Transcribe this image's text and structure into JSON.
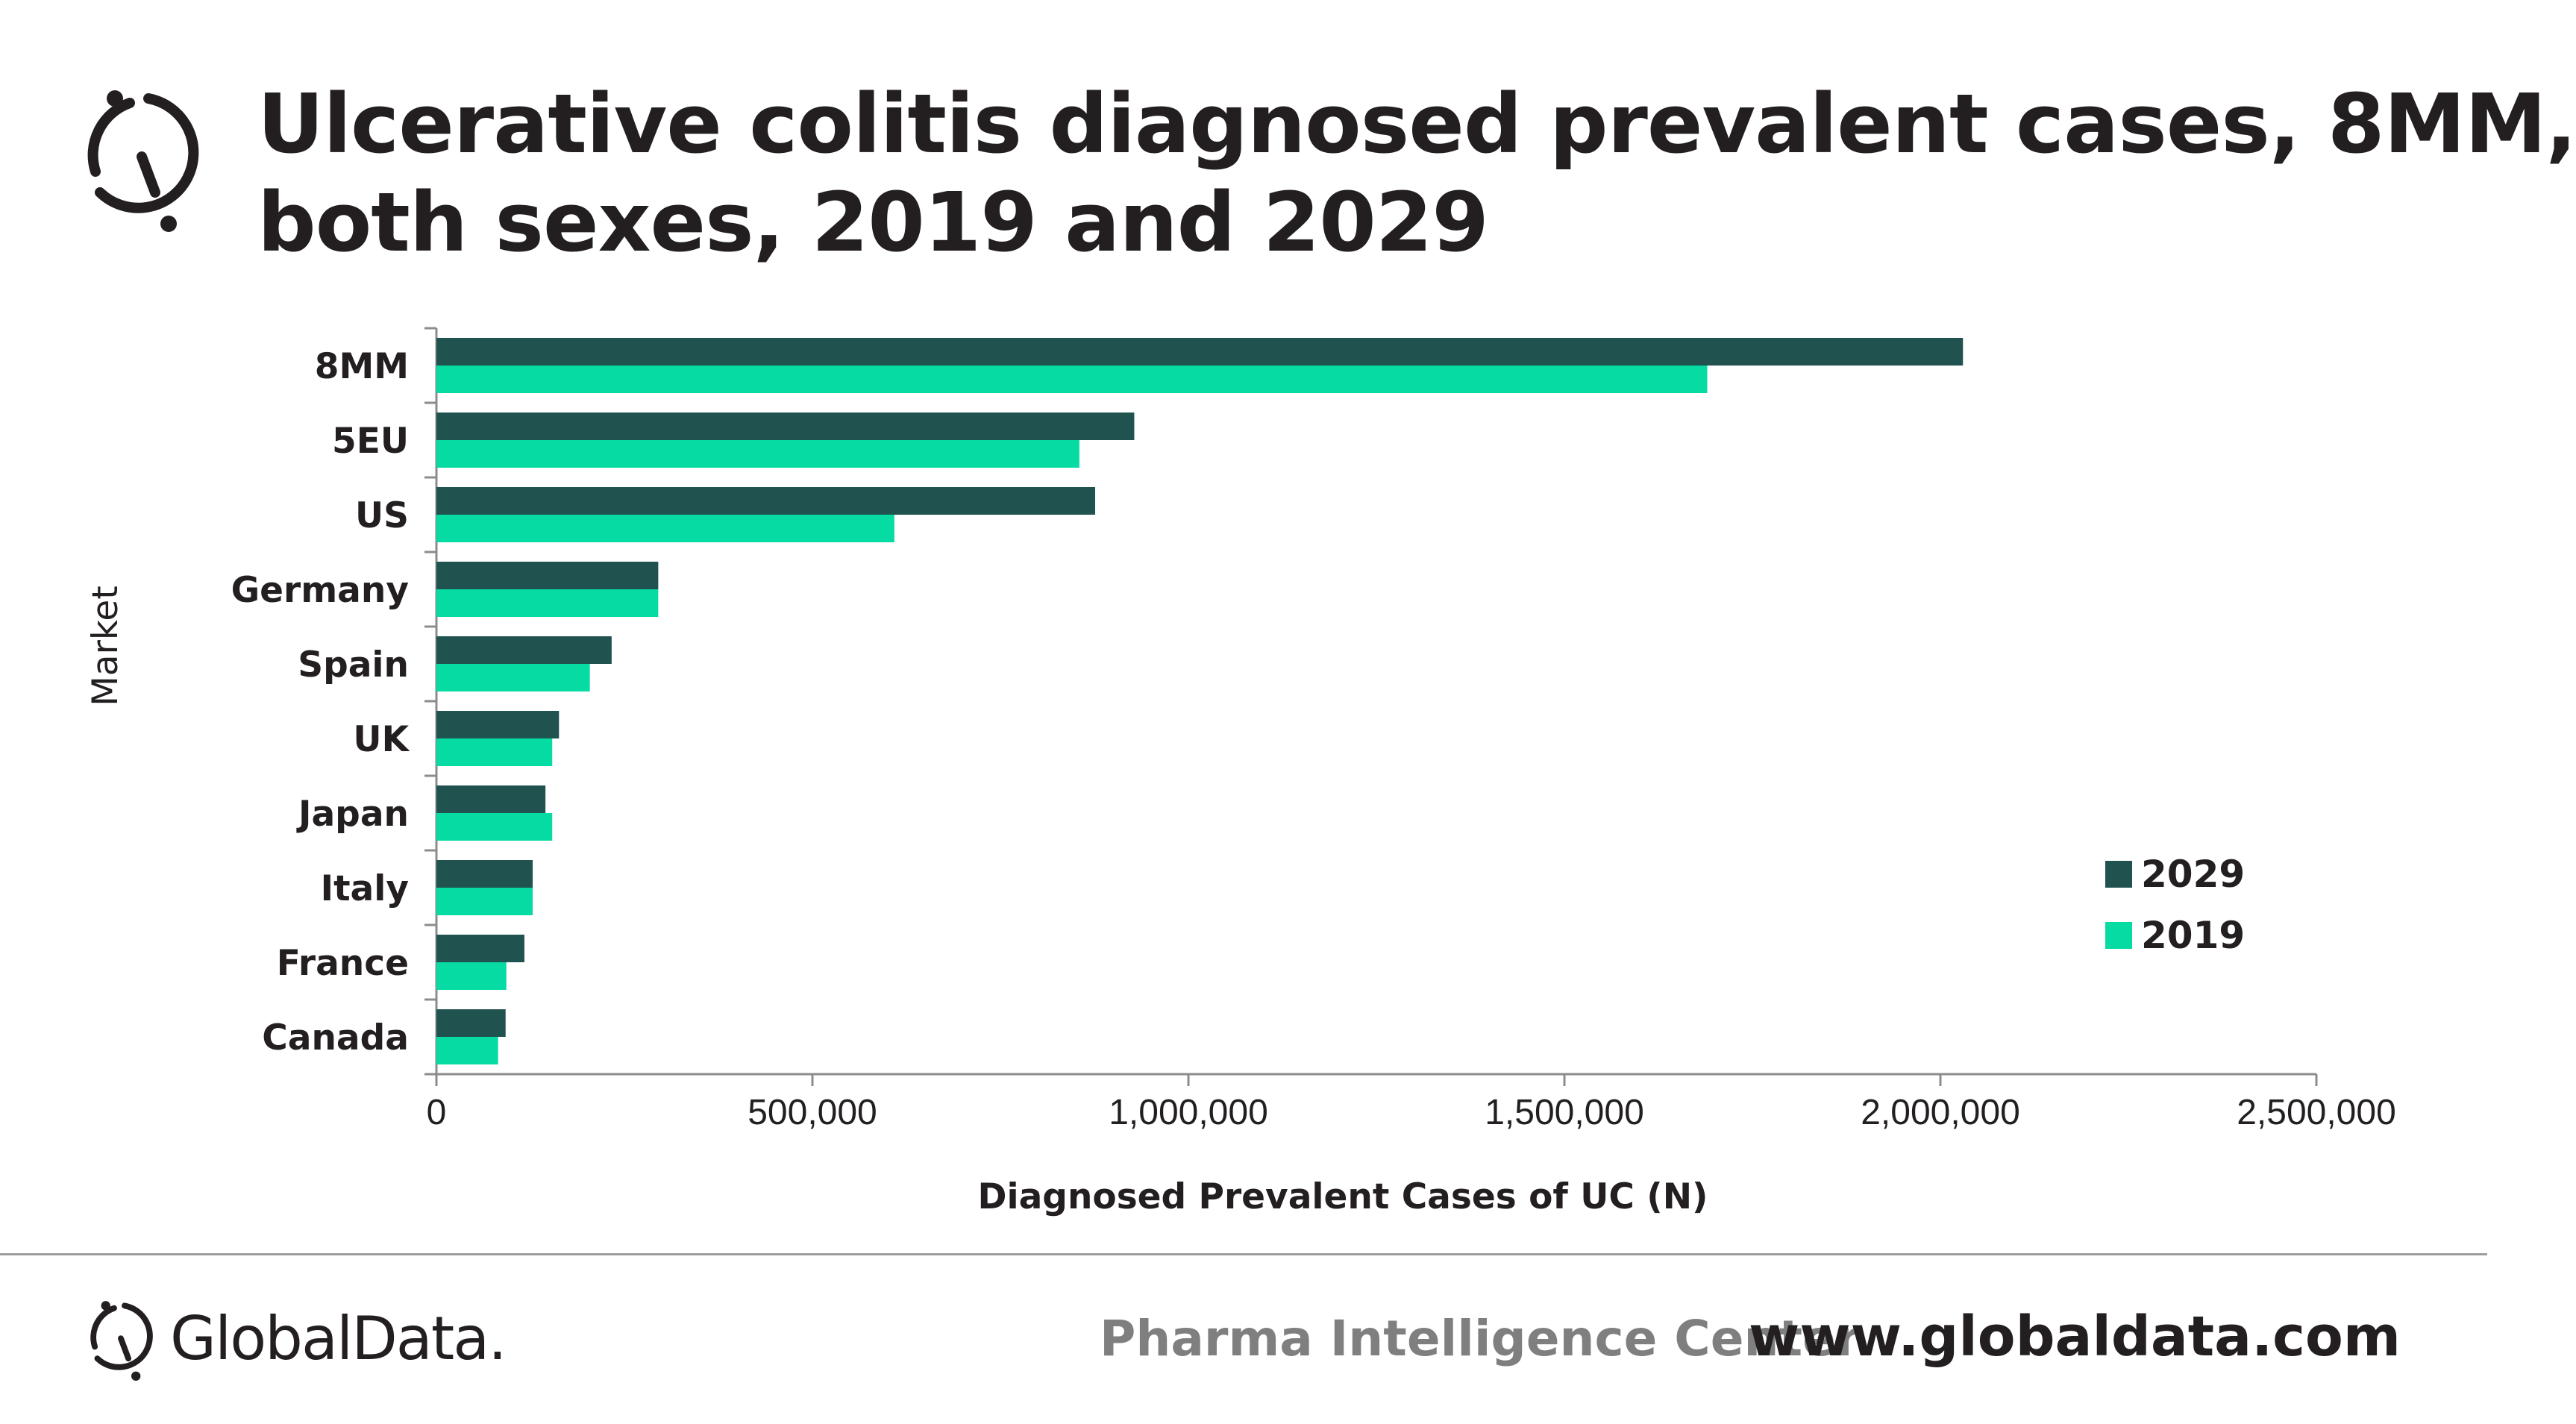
{
  "header": {
    "title_line1": "Ulcerative colitis diagnosed prevalent cases, 8MM,",
    "title_line2": "both sexes, 2019 and 2029"
  },
  "chart_data": {
    "type": "bar",
    "orientation": "horizontal",
    "categories": [
      "8MM",
      "5EU",
      "US",
      "Germany",
      "Spain",
      "UK",
      "Japan",
      "Italy",
      "France",
      "Canada"
    ],
    "series": [
      {
        "name": "2029",
        "color": "#20524f",
        "values": [
          2030000,
          928000,
          876000,
          295000,
          233000,
          163000,
          145000,
          128000,
          117000,
          92000
        ]
      },
      {
        "name": "2019",
        "color": "#06dba4",
        "values": [
          1690000,
          855000,
          609000,
          295000,
          204000,
          154000,
          154000,
          128000,
          93000,
          82000
        ]
      }
    ],
    "xlim": [
      0,
      2500000
    ],
    "x_ticks": [
      "0",
      "500,000",
      "1,000,000",
      "1,500,000",
      "2,000,000",
      "2,500,000"
    ],
    "xlabel": "Diagnosed Prevalent Cases of UC (N)",
    "ylabel": "Market",
    "legend_position": "right",
    "grid": false
  },
  "footer": {
    "brand": "GlobalData.",
    "center_text": "Pharma Intelligence Center",
    "url": "www.globaldata.com"
  },
  "colors": {
    "text": "#231f20",
    "axis": "#8c8c8c",
    "muted": "#7f7f7f"
  },
  "icons": {
    "header_logo": "globaldata-logo-icon",
    "footer_logo": "globaldata-logo-icon"
  }
}
